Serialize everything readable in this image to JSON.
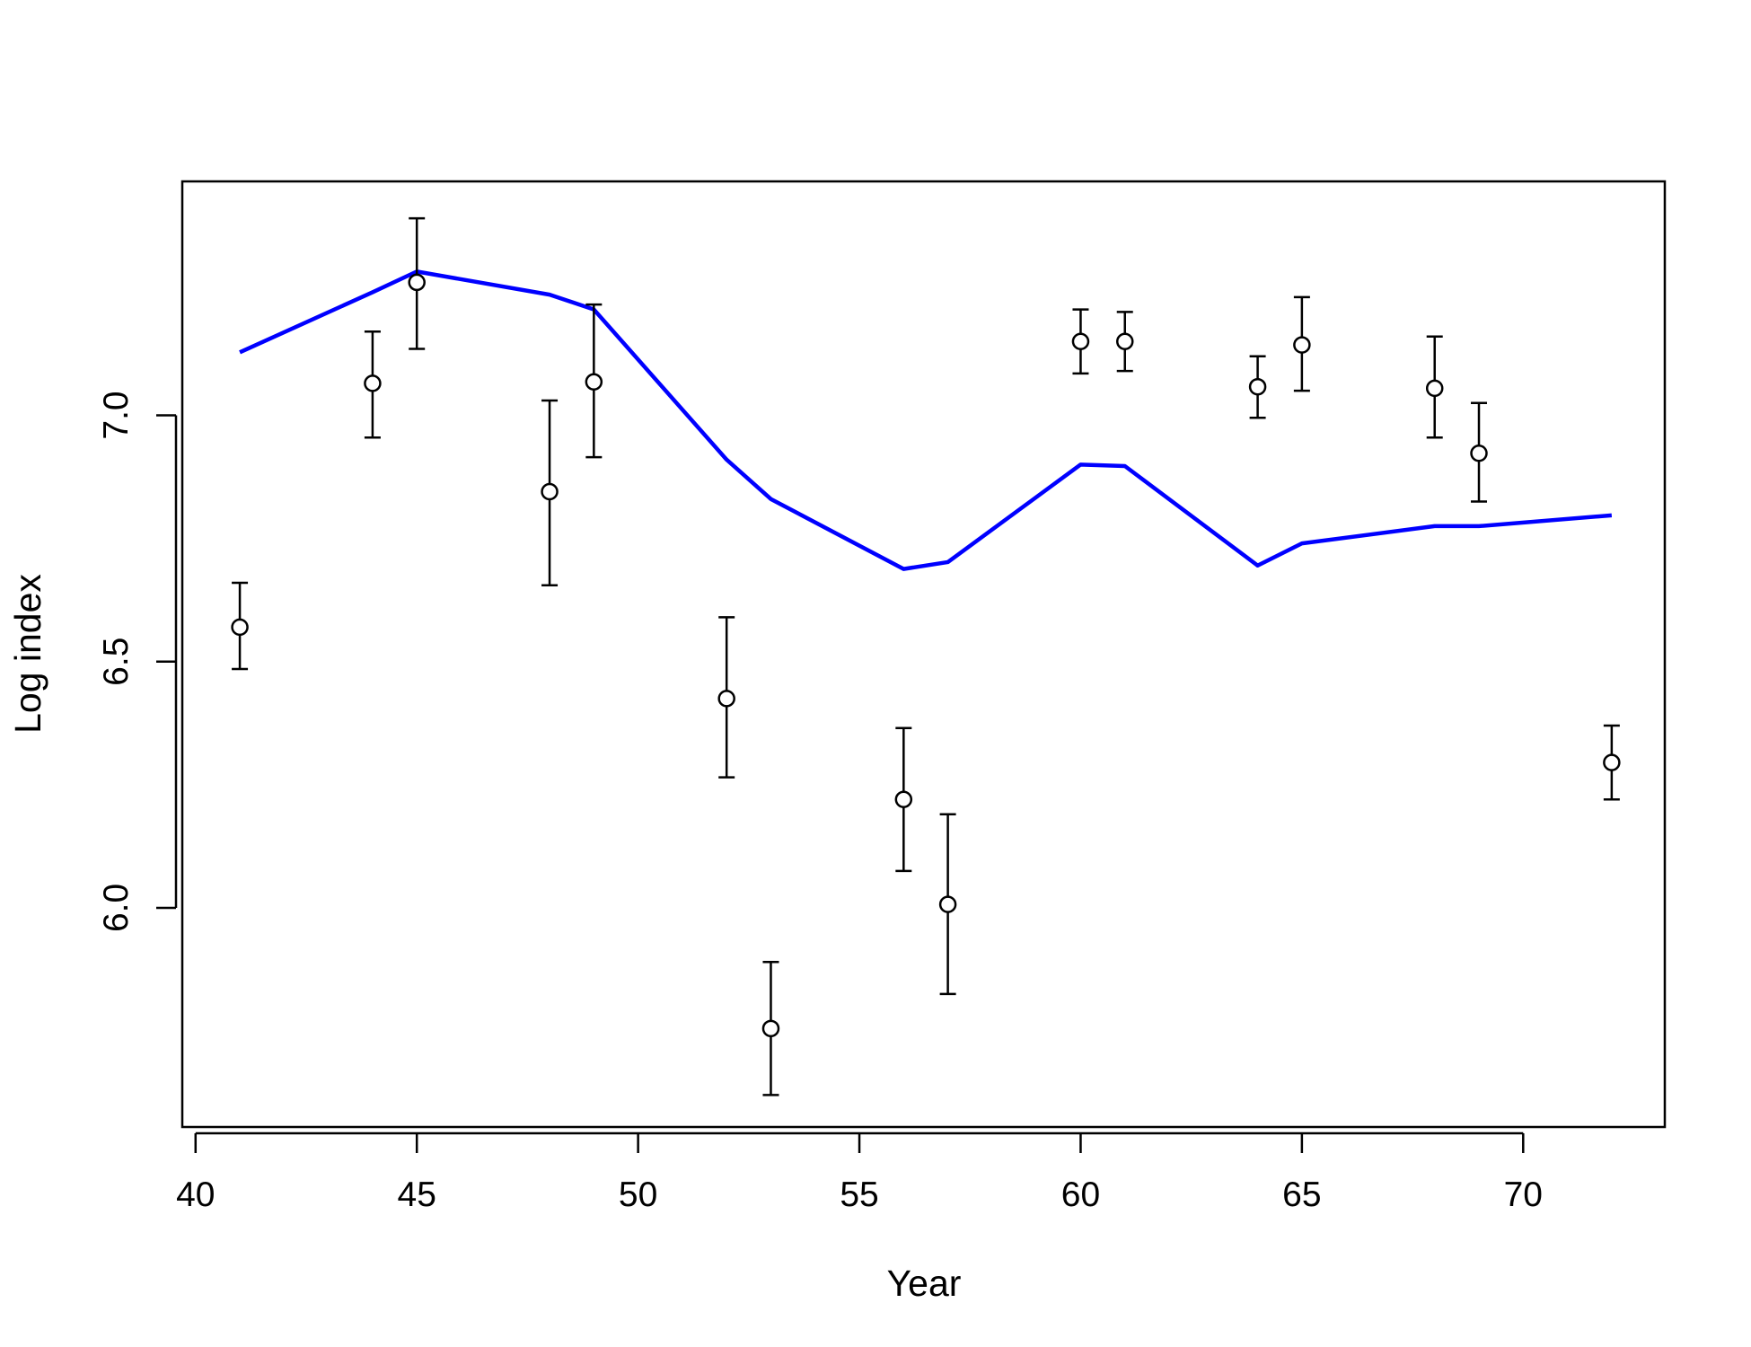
{
  "chart_data": {
    "type": "scatter",
    "title": "",
    "xlabel": "Year",
    "ylabel": "Log index",
    "xlim": [
      39.7,
      73.2
    ],
    "ylim": [
      5.555,
      7.475
    ],
    "x_ticks": [
      40,
      45,
      50,
      55,
      60,
      65,
      70
    ],
    "x_tick_labels": [
      "40",
      "45",
      "50",
      "55",
      "60",
      "65",
      "70"
    ],
    "y_ticks": [
      6.0,
      6.5,
      7.0
    ],
    "y_tick_labels": [
      "6.0",
      "6.5",
      "7.0"
    ],
    "grid": false,
    "legend": "none",
    "series": [
      {
        "type": "scatter-errorbar",
        "color": "#000000",
        "marker": "open-circle",
        "points": [
          {
            "x": 41,
            "y": 6.57,
            "lo": 6.485,
            "hi": 6.66
          },
          {
            "x": 44,
            "y": 7.065,
            "lo": 6.955,
            "hi": 7.17
          },
          {
            "x": 45,
            "y": 7.27,
            "lo": 7.135,
            "hi": 7.4
          },
          {
            "x": 48,
            "y": 6.845,
            "lo": 6.655,
            "hi": 7.03
          },
          {
            "x": 49,
            "y": 7.068,
            "lo": 6.915,
            "hi": 7.225
          },
          {
            "x": 52,
            "y": 6.425,
            "lo": 6.265,
            "hi": 6.59
          },
          {
            "x": 53,
            "y": 5.755,
            "lo": 5.62,
            "hi": 5.89
          },
          {
            "x": 56,
            "y": 6.22,
            "lo": 6.075,
            "hi": 6.365
          },
          {
            "x": 57,
            "y": 6.007,
            "lo": 5.825,
            "hi": 6.19
          },
          {
            "x": 60,
            "y": 7.15,
            "lo": 7.085,
            "hi": 7.215
          },
          {
            "x": 61,
            "y": 7.15,
            "lo": 7.09,
            "hi": 7.21
          },
          {
            "x": 64,
            "y": 7.058,
            "lo": 6.995,
            "hi": 7.12
          },
          {
            "x": 65,
            "y": 7.143,
            "lo": 7.05,
            "hi": 7.24
          },
          {
            "x": 68,
            "y": 7.055,
            "lo": 6.955,
            "hi": 7.16
          },
          {
            "x": 69,
            "y": 6.923,
            "lo": 6.825,
            "hi": 7.025
          },
          {
            "x": 72,
            "y": 6.295,
            "lo": 6.22,
            "hi": 6.37
          }
        ]
      },
      {
        "type": "line",
        "color": "#0000ff",
        "x": [
          41,
          44,
          45,
          48,
          49,
          52,
          53,
          56,
          57,
          60,
          61,
          64,
          65,
          68,
          69,
          72
        ],
        "values": [
          7.128,
          7.25,
          7.292,
          7.245,
          7.215,
          6.91,
          6.83,
          6.688,
          6.702,
          6.9,
          6.897,
          6.695,
          6.74,
          6.775,
          6.775,
          6.797
        ]
      }
    ]
  }
}
